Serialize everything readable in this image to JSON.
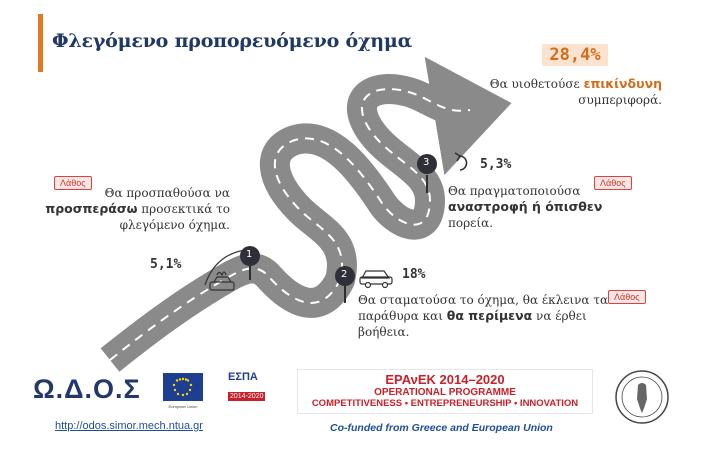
{
  "title": "Φλεγόμενο προπορευόμενο όχημα",
  "result": {
    "percent": "28,4%",
    "line1": "Θα υιοθετούσε",
    "line1_bold": "επικίνδυνη",
    "line2": "συμπεριφορά."
  },
  "options": [
    {
      "number": "1",
      "percent": "5,1%",
      "wrong": "Λάθος",
      "text_a": "Θα προσπαθούσα να",
      "text_bold": "προσπεράσω",
      "text_b": " προσεκτικά το",
      "text_c": "φλεγόμενο όχημα."
    },
    {
      "number": "2",
      "percent": "18%",
      "wrong": "Λάθος",
      "text_a": "Θα σταματούσα το όχημα, θα έκλεινα τα",
      "text_b": "παράθυρα και ",
      "text_bold": "θα περίμενα",
      "text_c": " να έρθει",
      "text_d": "βοήθεια."
    },
    {
      "number": "3",
      "percent": "5,3%",
      "wrong": "Λάθος",
      "text_a": "Θα πραγματοποιούσα",
      "text_bold": "αναστροφή ή όπισθεν",
      "text_c": "πορεία."
    }
  ],
  "footer": {
    "logo_text": "Ω.Δ.Ο.Σ",
    "link": "http://odos.simor.mech.ntua.gr",
    "cofunded": "Co-funded from Greece and European Union",
    "eu_caption": "European Union",
    "espa_title": "ΕΣΠΑ",
    "espa_years": "2014-2020",
    "epan_l1": "ΕΡΑνΕΚ 2014–2020",
    "epan_l2": "OPERATIONAL PROGRAMME",
    "epan_l3": "COMPETITIVENESS • ENTREPRENEURSHIP • INNOVATION"
  }
}
